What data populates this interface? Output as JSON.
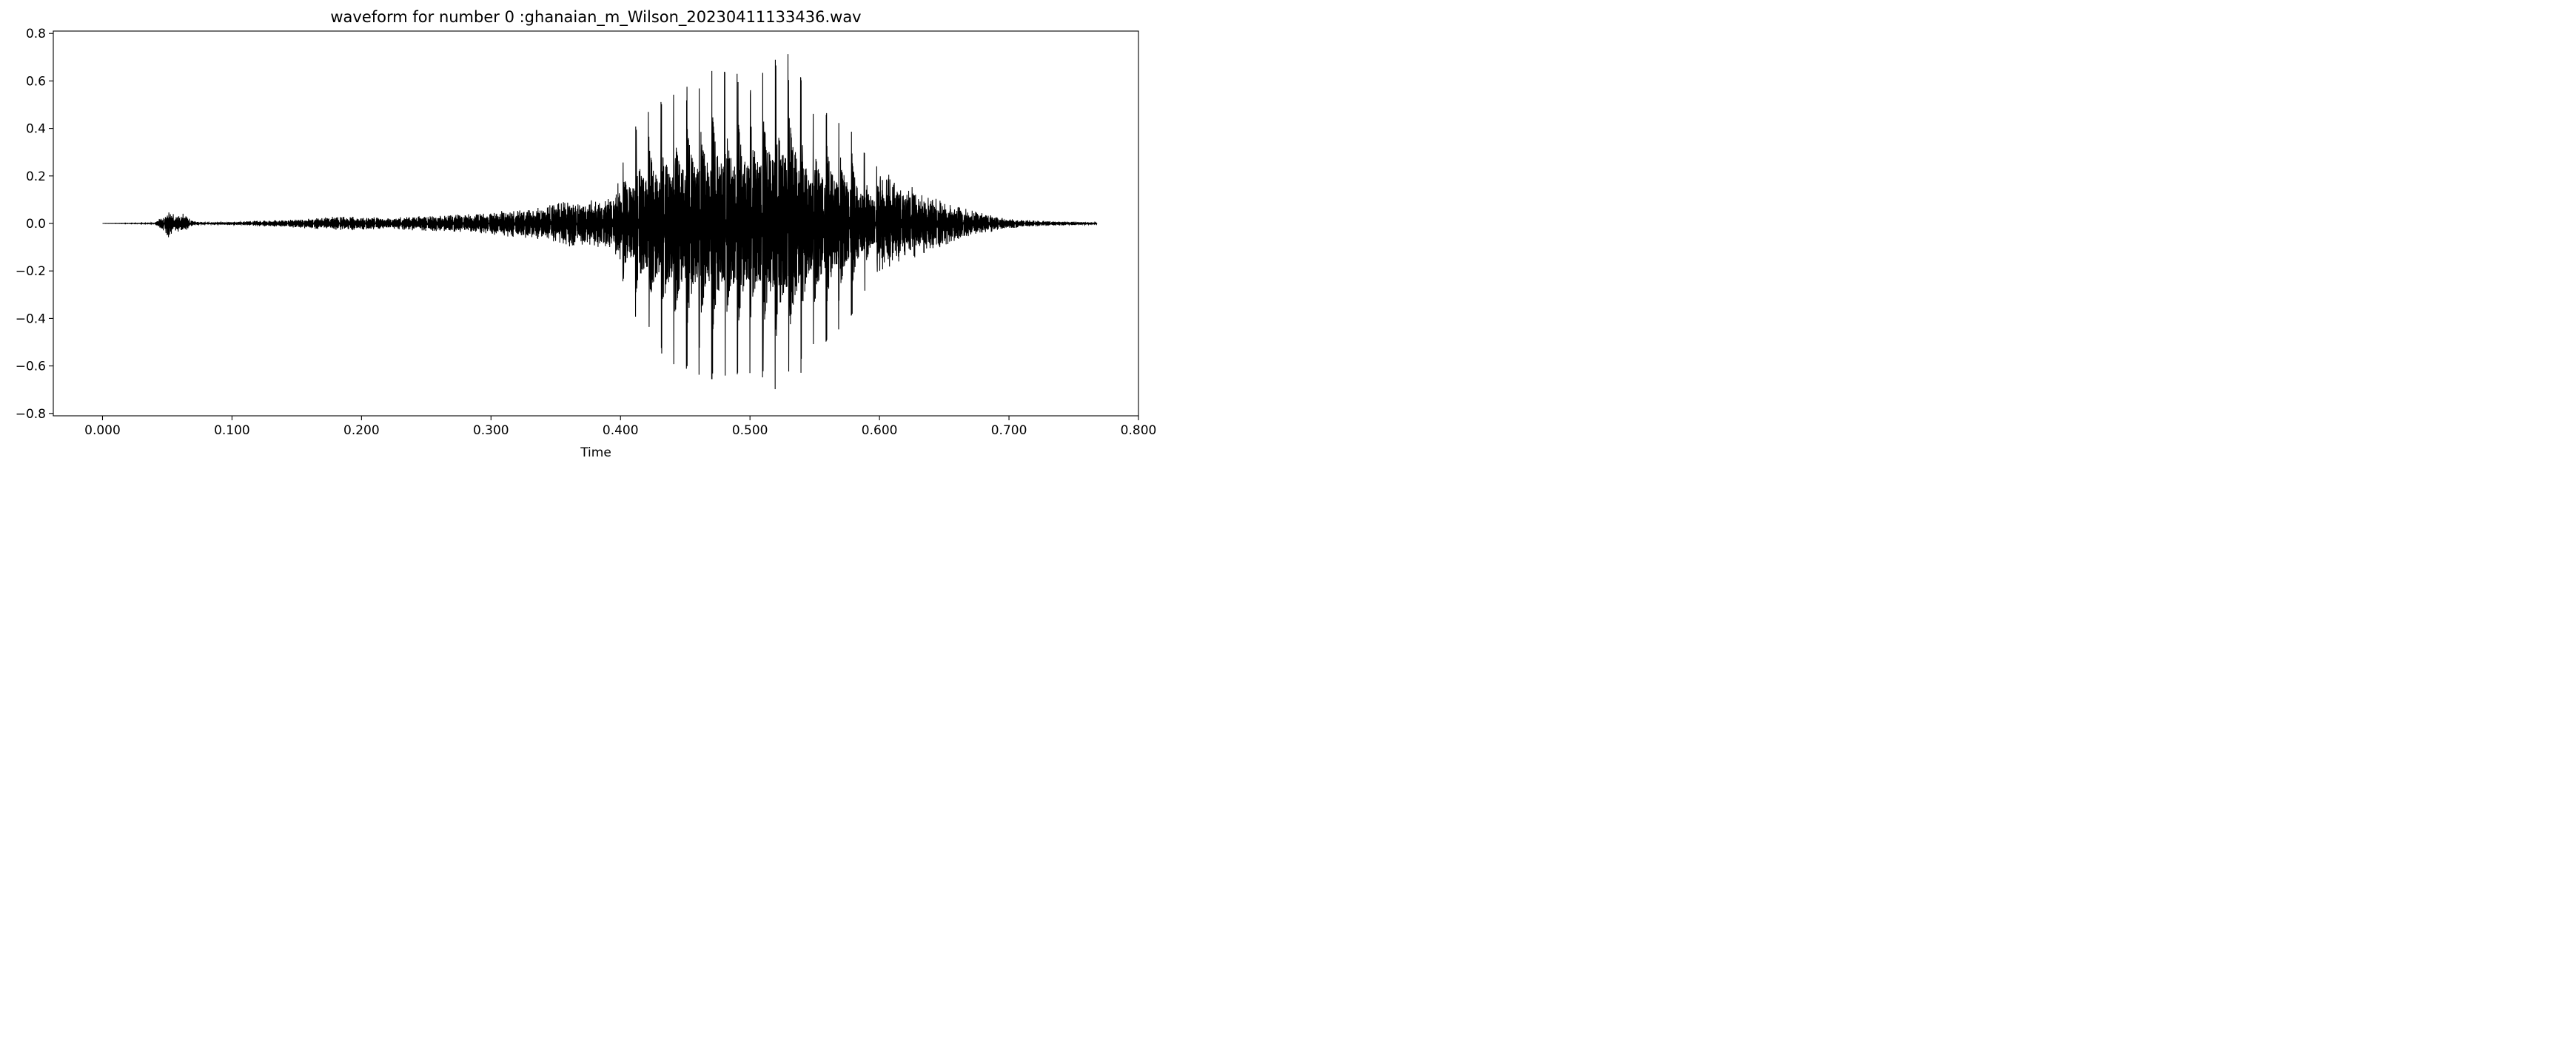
{
  "chart_data": {
    "type": "line",
    "title": "waveform for number 0 :ghanaian_m_Wilson_20230411133436.wav",
    "xlabel": "Time",
    "ylabel": "",
    "xlim": [
      -0.038,
      0.8
    ],
    "ylim": [
      -0.81,
      0.81
    ],
    "x_ticks": [
      0.0,
      0.1,
      0.2,
      0.3,
      0.4,
      0.5,
      0.6,
      0.7,
      0.8
    ],
    "x_tick_labels": [
      "0.000",
      "0.100",
      "0.200",
      "0.300",
      "0.400",
      "0.500",
      "0.600",
      "0.700",
      "0.800"
    ],
    "y_ticks": [
      -0.8,
      -0.6,
      -0.4,
      -0.2,
      0.0,
      0.2,
      0.4,
      0.6,
      0.8
    ],
    "y_tick_labels": [
      "−0.8",
      "−0.6",
      "−0.4",
      "−0.2",
      "0.0",
      "0.2",
      "0.4",
      "0.6",
      "0.8"
    ],
    "grid": false,
    "line_color": "#000000",
    "duration": 0.768,
    "envelope": {
      "time": [
        0.0,
        0.04,
        0.048,
        0.052,
        0.056,
        0.062,
        0.07,
        0.08,
        0.1,
        0.12,
        0.14,
        0.16,
        0.18,
        0.2,
        0.22,
        0.24,
        0.26,
        0.28,
        0.3,
        0.32,
        0.34,
        0.36,
        0.38,
        0.395,
        0.405,
        0.415,
        0.425,
        0.435,
        0.445,
        0.455,
        0.465,
        0.475,
        0.485,
        0.495,
        0.505,
        0.515,
        0.525,
        0.535,
        0.545,
        0.555,
        0.565,
        0.575,
        0.585,
        0.595,
        0.61,
        0.63,
        0.65,
        0.67,
        0.69,
        0.71,
        0.73,
        0.75,
        0.768
      ],
      "positive_peak": [
        0.0,
        0.002,
        0.04,
        0.065,
        0.035,
        0.045,
        0.01,
        0.005,
        0.007,
        0.012,
        0.015,
        0.022,
        0.03,
        0.028,
        0.025,
        0.03,
        0.035,
        0.04,
        0.05,
        0.06,
        0.07,
        0.1,
        0.1,
        0.12,
        0.32,
        0.45,
        0.48,
        0.53,
        0.55,
        0.6,
        0.62,
        0.66,
        0.62,
        0.64,
        0.62,
        0.68,
        0.7,
        0.73,
        0.45,
        0.48,
        0.46,
        0.42,
        0.32,
        0.25,
        0.2,
        0.14,
        0.1,
        0.06,
        0.03,
        0.015,
        0.01,
        0.008,
        0.005
      ],
      "negative_peak": [
        0.0,
        -0.002,
        -0.04,
        -0.065,
        -0.035,
        -0.04,
        -0.01,
        -0.005,
        -0.007,
        -0.012,
        -0.015,
        -0.022,
        -0.03,
        -0.028,
        -0.025,
        -0.03,
        -0.035,
        -0.04,
        -0.05,
        -0.06,
        -0.07,
        -0.1,
        -0.1,
        -0.12,
        -0.3,
        -0.44,
        -0.52,
        -0.58,
        -0.6,
        -0.62,
        -0.65,
        -0.66,
        -0.63,
        -0.64,
        -0.62,
        -0.68,
        -0.72,
        -0.73,
        -0.5,
        -0.52,
        -0.46,
        -0.42,
        -0.32,
        -0.22,
        -0.18,
        -0.14,
        -0.1,
        -0.06,
        -0.03,
        -0.015,
        -0.01,
        -0.008,
        -0.005
      ]
    }
  }
}
